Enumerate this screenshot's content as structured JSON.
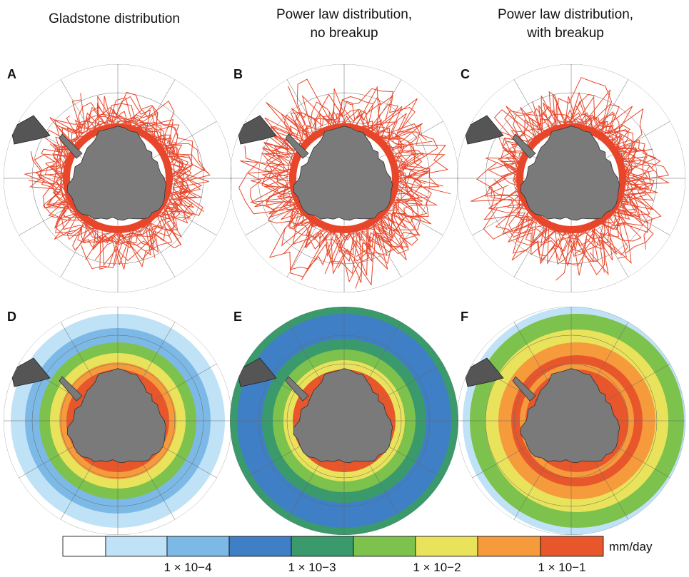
{
  "columns": [
    {
      "title_lines": [
        "Gladstone distribution"
      ]
    },
    {
      "title_lines": [
        "Power law distribution,",
        "no breakup"
      ]
    },
    {
      "title_lines": [
        "Power law distribution,",
        "with breakup"
      ]
    }
  ],
  "panels": [
    "A",
    "B",
    "C",
    "D",
    "E",
    "F"
  ],
  "colorbar": {
    "colors": [
      "#ffffff",
      "#bfe2f6",
      "#7db9e6",
      "#3f7fc6",
      "#3a9a6c",
      "#7dc24c",
      "#e9e35c",
      "#f59b3c",
      "#e8572c"
    ],
    "tick_labels": [
      "1 × 10−4",
      "1 × 10−3",
      "1 × 10−2",
      "1 × 10−1"
    ],
    "unit": "mm/day"
  }
}
